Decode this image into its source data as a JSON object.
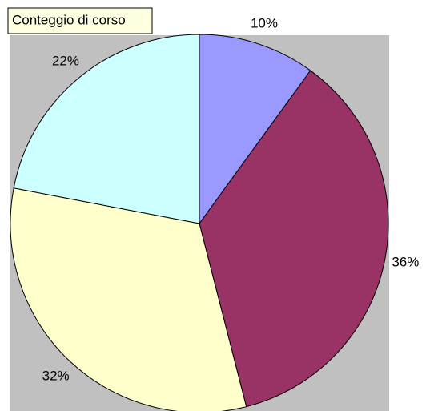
{
  "chart_data": {
    "type": "pie",
    "title": "Conteggio di corso",
    "values": [
      10,
      36,
      32,
      22
    ],
    "value_labels": [
      "10%",
      "36%",
      "32%",
      "22%"
    ],
    "colors": [
      "#9999ff",
      "#993366",
      "#ffffcc",
      "#ccffff"
    ]
  }
}
